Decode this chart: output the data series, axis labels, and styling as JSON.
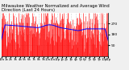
{
  "title": "Milwaukee Weather Normalized and Average Wind Direction (Last 24 Hours)",
  "background_color": "#f0f0f0",
  "plot_bg_color": "#ffffff",
  "grid_color": "#aaaaaa",
  "bar_color": "#ff0000",
  "line_color": "#0000ff",
  "ylim": [
    0,
    360
  ],
  "yticks": [
    90,
    180,
    270
  ],
  "n_points": 288,
  "title_fontsize": 3.8,
  "tick_fontsize": 3.2,
  "seed": 42
}
